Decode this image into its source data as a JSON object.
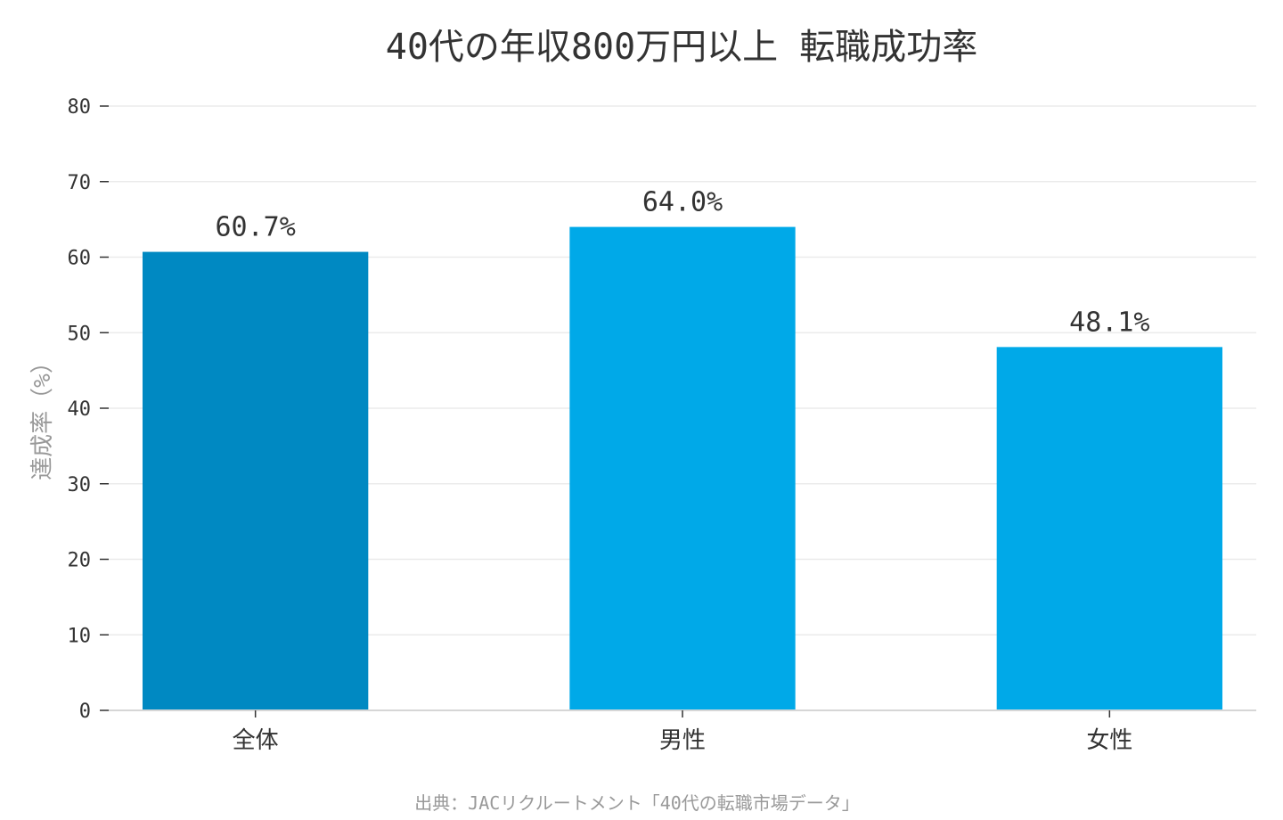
{
  "chart_data": {
    "type": "bar",
    "title": "40代の年収800万円以上 転職成功率",
    "ylabel": "達成率（%）",
    "xlabel": "",
    "categories": [
      "全体",
      "男性",
      "女性"
    ],
    "values": [
      60.7,
      64.0,
      48.1
    ],
    "data_labels": [
      "60.7%",
      "64.0%",
      "48.1%"
    ],
    "ylim": [
      0,
      80
    ],
    "yticks": [
      0,
      10,
      20,
      30,
      40,
      50,
      60,
      70,
      80
    ],
    "bar_colors": [
      "#0089c2",
      "#00a9e8",
      "#00a9e8"
    ],
    "grid": true,
    "legend": "none"
  },
  "source": "出典：JACリクルートメント「40代の転職市場データ」"
}
